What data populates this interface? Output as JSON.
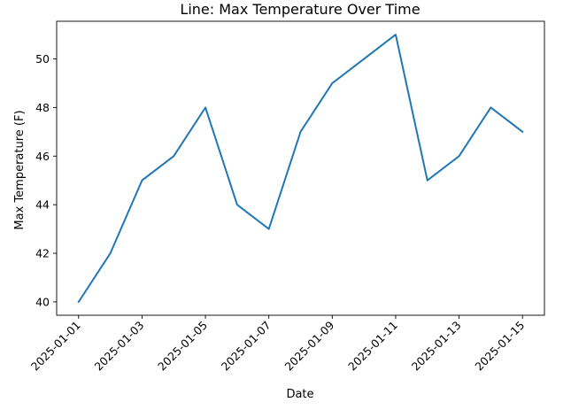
{
  "chart_data": {
    "type": "line",
    "title": "Line: Max Temperature Over Time",
    "xlabel": "Date",
    "ylabel": "Max Temperature (F)",
    "x": [
      "2025-01-01",
      "2025-01-02",
      "2025-01-03",
      "2025-01-04",
      "2025-01-05",
      "2025-01-06",
      "2025-01-07",
      "2025-01-08",
      "2025-01-09",
      "2025-01-10",
      "2025-01-11",
      "2025-01-12",
      "2025-01-13",
      "2025-01-14",
      "2025-01-15"
    ],
    "series": [
      {
        "values": [
          40,
          42,
          45,
          46,
          48,
          44,
          43,
          47,
          49,
          50,
          51,
          45,
          46,
          48,
          47
        ]
      }
    ],
    "xticks": [
      "2025-01-01",
      "2025-01-03",
      "2025-01-05",
      "2025-01-07",
      "2025-01-09",
      "2025-01-11",
      "2025-01-13",
      "2025-01-15"
    ],
    "yticks": [
      40,
      42,
      44,
      46,
      48,
      50
    ],
    "ylim": [
      39.45,
      51.55
    ],
    "grid": false,
    "legend": "none",
    "line_color": "#1f77b4"
  }
}
